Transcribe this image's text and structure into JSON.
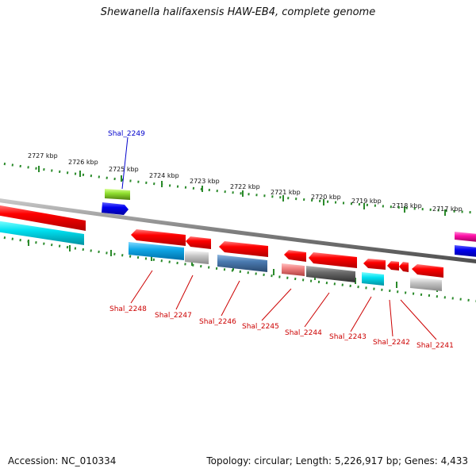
{
  "title": "Shewanella halifaxensis HAW-EB4, complete genome",
  "footer": {
    "accession": "Accession: NC_010334",
    "topology": "Topology: circular; Length: 5,226,917 bp; Genes: 4,433"
  },
  "colors": {
    "backbone": "#888888",
    "tick_dots": "#2a8a2a",
    "label_upper": "#0000cc",
    "label_lower": "#cc0000"
  },
  "ruler": {
    "labels": [
      "2727 kbp",
      "2726 kbp",
      "2725 kbp",
      "2724 kbp",
      "2723 kbp",
      "2722 kbp",
      "2721 kbp",
      "2720 kbp",
      "2719 kbp",
      "2718 kbp",
      "2717 kbp"
    ]
  },
  "gene_labels": {
    "upper": [
      "Shal_2249"
    ],
    "lower": [
      "Shal_2248",
      "Shal_2247",
      "Shal_2246",
      "Shal_2245",
      "Shal_2244",
      "Shal_2243",
      "Shal_2242",
      "Shal_2241"
    ]
  }
}
